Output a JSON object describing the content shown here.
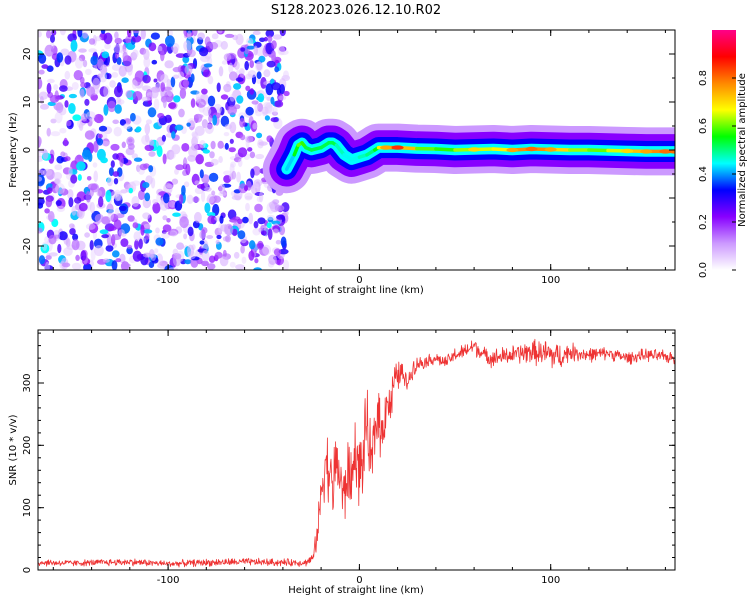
{
  "figure": {
    "title": "S128.2023.026.12.10.R02"
  },
  "chart_data": [
    {
      "type": "heatmap",
      "xlabel": "Height of straight line (km)",
      "ylabel": "Frequency (Hz)",
      "xlim": [
        -168,
        165
      ],
      "ylim": [
        -25,
        25
      ],
      "xticks": [
        -100,
        0,
        100
      ],
      "yticks": [
        -20,
        -10,
        0,
        10,
        20
      ],
      "colorbar": {
        "label": "Normalized spectral amplitude",
        "range": [
          0,
          1
        ],
        "ticks": [
          "0.0",
          "0.2",
          "0.4",
          "0.6",
          "0.8"
        ],
        "colors": [
          "#ffffff",
          "#cc99ff",
          "#8800ff",
          "#0000ff",
          "#00ffff",
          "#00ff00",
          "#ffff00",
          "#ff8800",
          "#ff0000",
          "#ff0088"
        ]
      },
      "noise_region": {
        "x_from": -168,
        "x_to": -38,
        "level": 0.2
      },
      "ridge": {
        "x": [
          -38,
          -34,
          -32,
          -30,
          -28,
          -25,
          -20,
          -16,
          -14,
          -12,
          -8,
          -4,
          0,
          4,
          8,
          10,
          14,
          20,
          30,
          40,
          50,
          60,
          70,
          80,
          90,
          100,
          110,
          120,
          130,
          140,
          150,
          160,
          165
        ],
        "freq": [
          -4,
          -1,
          1,
          1.5,
          0.5,
          0,
          0.5,
          1.5,
          1.5,
          1,
          -1,
          -2,
          -1.5,
          -1,
          0,
          0.5,
          0.5,
          0.5,
          0.3,
          0.2,
          0,
          0.1,
          0.2,
          0,
          0.2,
          0.1,
          0,
          0,
          -0.1,
          -0.2,
          -0.3,
          -0.3,
          -0.3
        ],
        "amplitude": [
          0.35,
          0.5,
          0.6,
          0.6,
          0.55,
          0.5,
          0.55,
          0.5,
          0.55,
          0.5,
          0.45,
          0.45,
          0.45,
          0.5,
          0.5,
          0.6,
          0.75,
          0.85,
          0.6,
          0.6,
          0.55,
          0.7,
          0.6,
          0.75,
          0.8,
          0.75,
          0.65,
          0.6,
          0.6,
          0.7,
          0.75,
          0.8,
          0.8
        ]
      }
    },
    {
      "type": "line",
      "xlabel": "Height of straight line (km)",
      "ylabel": "SNR (10 * v/v)",
      "xlim": [
        -168,
        165
      ],
      "ylim": [
        0,
        385
      ],
      "xticks": [
        -100,
        0,
        100
      ],
      "yticks": [
        0,
        100,
        200,
        300
      ],
      "color": "#ee3333",
      "series": [
        {
          "name": "",
          "x": [
            -168,
            -150,
            -120,
            -100,
            -80,
            -60,
            -40,
            -28,
            -24,
            -22,
            -20,
            -18,
            -16,
            -14,
            -12,
            -10,
            -8,
            -6,
            -4,
            -2,
            0,
            2,
            4,
            6,
            8,
            10,
            12,
            14,
            16,
            18,
            20,
            22,
            24,
            26,
            28,
            30,
            35,
            40,
            45,
            50,
            55,
            60,
            65,
            70,
            80,
            90,
            95,
            100,
            105,
            110,
            120,
            130,
            140,
            150,
            160,
            165
          ],
          "y": [
            12,
            11,
            13,
            10,
            12,
            13,
            12,
            12,
            20,
            60,
            120,
            180,
            160,
            130,
            175,
            150,
            110,
            160,
            140,
            200,
            150,
            180,
            240,
            160,
            220,
            260,
            210,
            280,
            260,
            300,
            310,
            320,
            300,
            305,
            325,
            330,
            335,
            340,
            332,
            345,
            350,
            360,
            345,
            340,
            345,
            350,
            348,
            345,
            342,
            350,
            345,
            348,
            340,
            345,
            342,
            340
          ],
          "noise": [
            6,
            5,
            6,
            5,
            6,
            6,
            6,
            6,
            8,
            25,
            45,
            55,
            55,
            55,
            55,
            60,
            55,
            55,
            55,
            55,
            60,
            55,
            60,
            60,
            55,
            55,
            50,
            45,
            40,
            30,
            25,
            20,
            18,
            15,
            15,
            12,
            10,
            10,
            10,
            12,
            12,
            15,
            12,
            15,
            15,
            20,
            20,
            28,
            20,
            15,
            12,
            10,
            10,
            10,
            10,
            10
          ]
        }
      ]
    }
  ]
}
